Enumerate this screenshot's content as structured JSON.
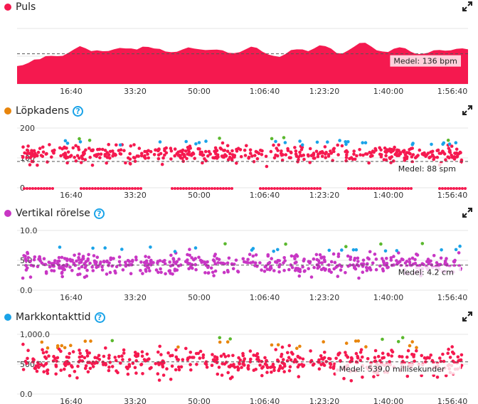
{
  "colors": {
    "red": "#f5194f",
    "orange": "#e8850c",
    "purple": "#c836c4",
    "blue": "#1aa3e8",
    "green": "#5bb82e"
  },
  "panels": [
    {
      "key": "puls",
      "title": "Puls",
      "color": "#f5194f",
      "help": false,
      "icon": "expand-icon",
      "avg_label": "Medel: 136 bpm",
      "avg": 136,
      "y_ticks": [],
      "chart_data": {
        "type": "area",
        "x_unit": "time",
        "x_ticks": [
          "16:40",
          "33:20",
          "50:00",
          "1:06:40",
          "1:23:20",
          "1:40:00",
          "1:56:40"
        ],
        "ylim": [
          60,
          200
        ],
        "avg": 136,
        "series": [
          {
            "values": [
              105,
              112,
              118,
              122,
              118,
              125,
              130,
              134,
              136,
              140,
              144,
              150,
              148,
              146,
              150,
              145,
              140,
              142,
              148,
              152,
              155,
              150,
              152,
              148,
              146,
              150,
              147,
              144,
              140,
              142,
              148,
              150,
              152,
              150,
              146,
              142,
              140,
              138,
              142,
              145,
              148,
              150,
              146,
              140,
              138,
              136,
              130,
              132,
              140,
              145,
              150,
              148,
              152,
              155,
              150,
              146,
              140,
              142,
              148,
              152,
              158,
              160,
              156,
              150,
              146,
              140,
              144,
              148,
              150,
              146,
              140,
              136,
              134,
              140,
              145,
              148,
              150,
              150,
              146,
              142
            ]
          }
        ]
      }
    },
    {
      "key": "lopkadens",
      "title": "Löpkadens",
      "color": "#e8850c",
      "help": true,
      "icon": "expand-icon",
      "avg_label": "Medel: 88 spm",
      "avg": 88,
      "y_ticks": [
        "200",
        "100",
        "0"
      ],
      "chart_data": {
        "type": "scatter",
        "x_ticks": [
          "16:40",
          "33:20",
          "50:00",
          "1:06:40",
          "1:23:20",
          "1:40:00",
          "1:56:40"
        ],
        "ylim": [
          0,
          200
        ],
        "avg": 88,
        "center": 112,
        "spread": 14,
        "zero_band": true,
        "seed": 11
      }
    },
    {
      "key": "vertikal",
      "title": "Vertikal rörelse",
      "color": "#c836c4",
      "help": true,
      "icon": "expand-icon",
      "avg_label": "Medel: 4.2 cm",
      "avg": 4.2,
      "y_ticks": [
        "10.0",
        "5.0",
        "0.0"
      ],
      "chart_data": {
        "type": "scatter",
        "x_ticks": [
          "16:40",
          "33:20",
          "50:00",
          "1:06:40",
          "1:23:20",
          "1:40:00",
          "1:56:40"
        ],
        "ylim": [
          0,
          10
        ],
        "avg": 4.2,
        "center": 4.3,
        "spread": 0.9,
        "zero_band": false,
        "seed": 23
      }
    },
    {
      "key": "markkontakt",
      "title": "Markkontakttid",
      "color": "#1aa3e8",
      "help": true,
      "icon": "expand-icon",
      "avg_label": "Medel: 539.0 millisekunder",
      "avg": 539,
      "y_ticks": [
        "1,000.0",
        "500.0",
        "0.0"
      ],
      "chart_data": {
        "type": "scatter",
        "x_ticks": [
          "16:40",
          "33:20",
          "50:00",
          "1:06:40",
          "1:23:20",
          "1:40:00",
          "1:56:40"
        ],
        "ylim": [
          0,
          1000
        ],
        "avg": 539,
        "center": 520,
        "spread": 110,
        "zero_band": false,
        "seed": 37
      }
    }
  ]
}
